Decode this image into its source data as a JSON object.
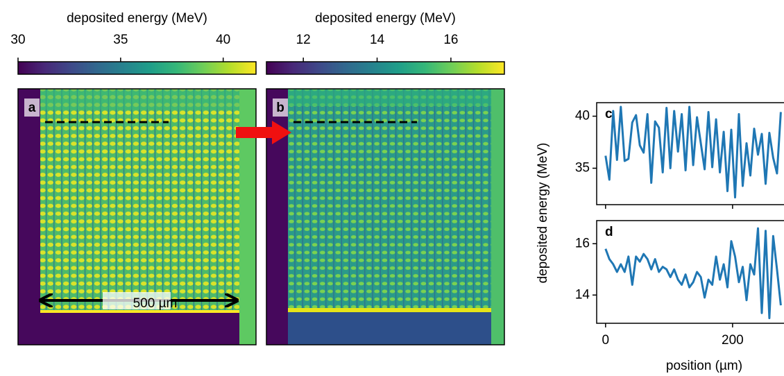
{
  "chart_data": [
    {
      "type": "colorbar",
      "label": "deposited energy (MeV)",
      "colormap": "viridis",
      "xlim": [
        30,
        41.6
      ],
      "xticks": [
        30,
        35,
        40
      ]
    },
    {
      "type": "colorbar",
      "label": "deposited energy (MeV)",
      "colormap": "viridis",
      "xlim": [
        11,
        17.45
      ],
      "xticks": [
        12,
        14,
        16
      ]
    },
    {
      "type": "image",
      "panel": "a",
      "annotation": "500 µm"
    },
    {
      "type": "image",
      "panel": "b"
    },
    {
      "type": "line",
      "panel": "c",
      "ylabel": "deposited energy (MeV)",
      "color": "#1f77b4",
      "x": [
        0,
        6,
        12,
        18,
        24,
        30,
        36,
        42,
        48,
        54,
        60,
        66,
        72,
        78,
        84,
        90,
        96,
        102,
        108,
        114,
        120,
        126,
        132,
        138,
        144,
        150,
        156,
        162,
        168,
        174,
        180,
        186,
        192,
        198,
        204,
        210,
        216,
        222,
        228,
        234,
        240,
        246,
        252,
        258,
        264,
        270,
        276
      ],
      "values": [
        36.2,
        33.9,
        40.5,
        35.8,
        40.9,
        35.7,
        35.9,
        39.4,
        40.1,
        37.2,
        36.5,
        40.2,
        33.6,
        39.5,
        38.9,
        34.6,
        40.8,
        35.0,
        40.5,
        36.6,
        40.2,
        34.8,
        40.9,
        35.3,
        39.9,
        37.4,
        34.9,
        40.4,
        35.1,
        39.7,
        34.6,
        38.5,
        32.8,
        38.7,
        32.2,
        40.2,
        33.3,
        37.4,
        34.3,
        38.8,
        36.3,
        38.3,
        33.5,
        38.4,
        36.0,
        34.5,
        40.4
      ],
      "xlim": [
        -14,
        281
      ],
      "ylim": [
        31.5,
        41.3
      ],
      "yticks": [
        35,
        40
      ]
    },
    {
      "type": "line",
      "panel": "d",
      "xlabel": "position (µm)",
      "color": "#1f77b4",
      "x": [
        0,
        6,
        12,
        18,
        24,
        30,
        36,
        42,
        48,
        54,
        60,
        66,
        72,
        78,
        84,
        90,
        96,
        102,
        108,
        114,
        120,
        126,
        132,
        138,
        144,
        150,
        156,
        162,
        168,
        174,
        180,
        186,
        192,
        198,
        204,
        210,
        216,
        222,
        228,
        234,
        240,
        246,
        252,
        258,
        264,
        270,
        276
      ],
      "values": [
        15.8,
        15.4,
        15.2,
        14.9,
        15.2,
        14.9,
        15.5,
        14.4,
        15.5,
        15.3,
        15.6,
        15.4,
        15.0,
        15.4,
        14.9,
        15.1,
        15.0,
        14.7,
        15.0,
        14.6,
        14.4,
        14.8,
        14.3,
        14.5,
        14.9,
        14.7,
        13.9,
        14.6,
        14.4,
        15.5,
        14.6,
        15.2,
        14.3,
        16.1,
        15.5,
        14.5,
        15.1,
        13.8,
        15.2,
        14.8,
        16.6,
        13.3,
        16.5,
        13.1,
        16.3,
        15.0,
        13.6
      ],
      "xlim": [
        -14,
        281
      ],
      "ylim": [
        12.9,
        16.9
      ],
      "yticks": [
        14,
        16
      ],
      "xticks": [
        0,
        200
      ]
    }
  ]
}
